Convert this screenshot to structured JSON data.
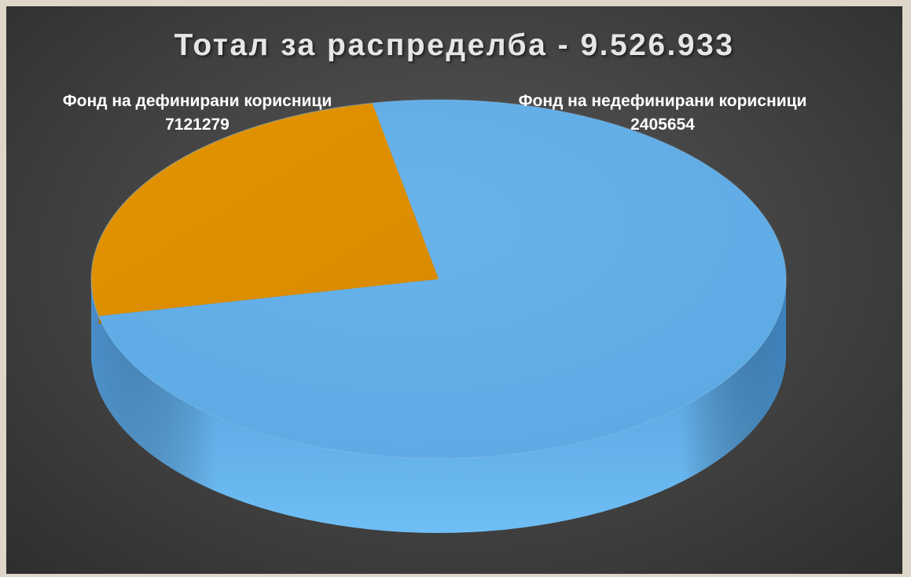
{
  "chart_data": {
    "type": "pie",
    "title": "Тотал за распределба - 9.526.933",
    "slices": [
      {
        "label": "Фонд на дефинирани корисници",
        "value": 7121279,
        "value_label": "7121279",
        "color": "#63aee8"
      },
      {
        "label": "Фонд на недефинирани корисници",
        "value": 2405654,
        "value_label": "2405654",
        "color": "#e08f00"
      }
    ],
    "style": "3d"
  }
}
